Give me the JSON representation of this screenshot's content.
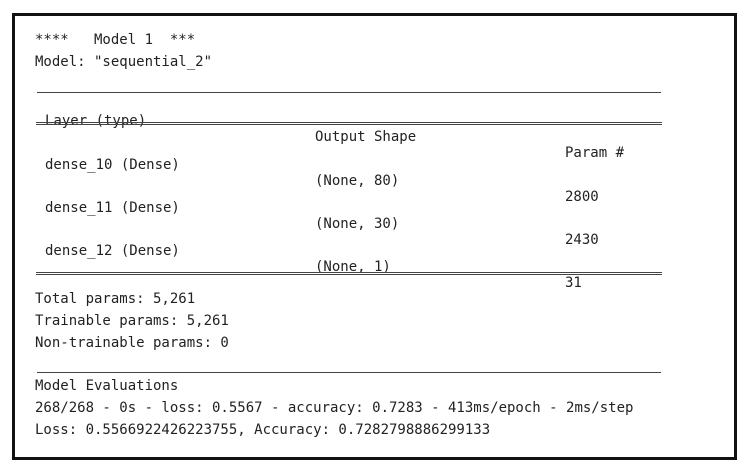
{
  "header": {
    "model_banner": "****   Model 1  ***",
    "model_name": "Model: \"sequential_2\""
  },
  "table": {
    "headers": {
      "layer": "Layer (type)",
      "output": "Output Shape",
      "params": "Param #"
    },
    "rows": [
      {
        "layer": "dense_10 (Dense)",
        "output": "(None, 80)",
        "params": "2800"
      },
      {
        "layer": "dense_11 (Dense)",
        "output": "(None, 30)",
        "params": "2430"
      },
      {
        "layer": "dense_12 (Dense)",
        "output": "(None, 1)",
        "params": "31"
      }
    ]
  },
  "summary": {
    "total": "Total params: 5,261",
    "trainable": "Trainable params: 5,261",
    "non_trainable": "Non-trainable params: 0"
  },
  "evaluation": {
    "title": "Model Evaluations",
    "progress": "268/268 - 0s - loss: 0.5567 - accuracy: 0.7283 - 413ms/epoch - 2ms/step",
    "result": "Loss: 0.5566922426223755, Accuracy: 0.7282798886299133"
  }
}
